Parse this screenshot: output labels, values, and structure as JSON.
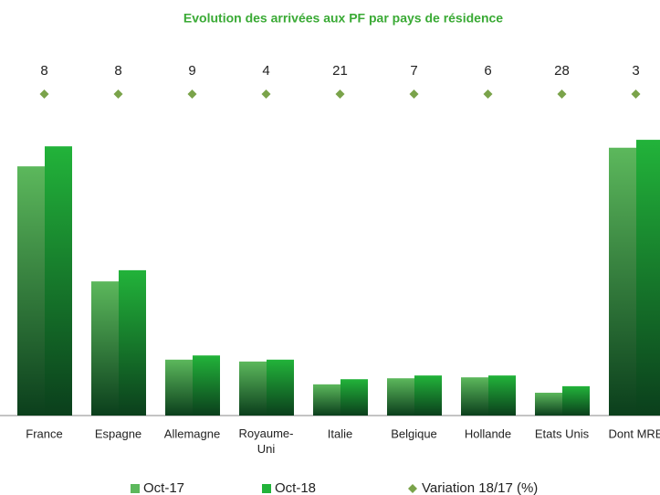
{
  "chart_data": {
    "type": "bar",
    "title": "Evolution des arrivées aux PF par pays de résidence",
    "categories": [
      "France",
      "Espagne",
      "Allemagne",
      "Royaume-Uni",
      "Italie",
      "Belgique",
      "Hollande",
      "Etats Unis",
      "Dont MRE"
    ],
    "series": [
      {
        "name": "Oct-17",
        "color": "#5cb85c",
        "values": [
          5.35,
          2.88,
          1.2,
          1.16,
          0.67,
          0.8,
          0.82,
          0.49,
          5.75
        ]
      },
      {
        "name": "Oct-18",
        "color": "#22b33a",
        "values": [
          5.78,
          3.12,
          1.29,
          1.2,
          0.78,
          0.86,
          0.86,
          0.63,
          5.92
        ]
      }
    ],
    "variation": {
      "name": "Variation 18/17 (%)",
      "color": "#7aa34a",
      "values": [
        8,
        8,
        9,
        4,
        21,
        7,
        6,
        28,
        3
      ]
    },
    "ylim": [
      0,
      7
    ]
  }
}
